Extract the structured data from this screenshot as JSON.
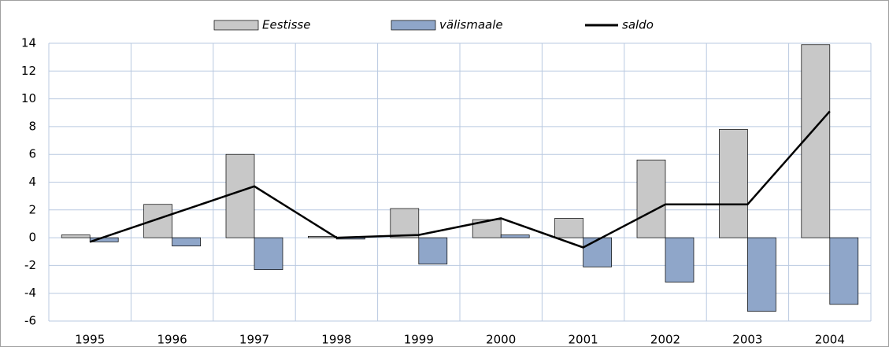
{
  "chart_data": {
    "type": "bar-line",
    "categories": [
      "1995",
      "1996",
      "1997",
      "1998",
      "1999",
      "2000",
      "2001",
      "2002",
      "2003",
      "2004"
    ],
    "series": [
      {
        "name": "Eestisse",
        "type": "bar",
        "color": "#c8c8c8",
        "values": [
          0.2,
          2.4,
          6.0,
          0.1,
          2.1,
          1.3,
          1.4,
          5.6,
          7.8,
          13.9
        ]
      },
      {
        "name": "välismaale",
        "type": "bar",
        "color": "#8fa6c9",
        "values": [
          -0.3,
          -0.6,
          -2.3,
          -0.1,
          -1.9,
          0.2,
          -2.1,
          -3.2,
          -5.3,
          -4.8
        ]
      },
      {
        "name": "saldo",
        "type": "line",
        "color": "#000000",
        "values": [
          -0.3,
          1.7,
          3.7,
          0.0,
          0.2,
          1.4,
          -0.7,
          2.4,
          2.4,
          9.1
        ]
      }
    ],
    "ylim": [
      -6,
      14
    ],
    "yticks": [
      -6,
      -4,
      -2,
      0,
      2,
      4,
      6,
      8,
      10,
      12,
      14
    ],
    "grid": true,
    "legend": "top"
  }
}
